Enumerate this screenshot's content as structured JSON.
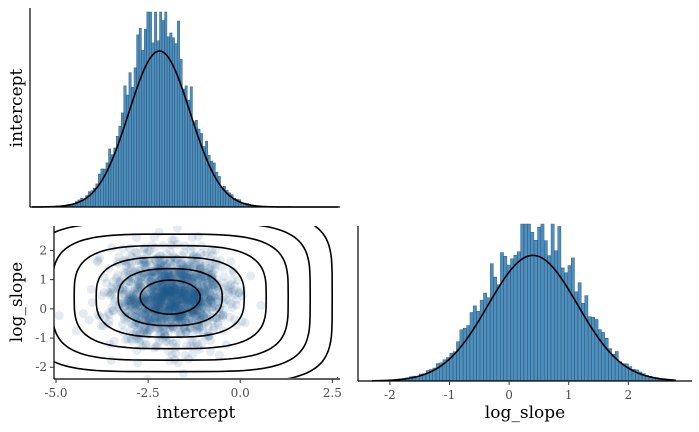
{
  "colors": {
    "bar_fill": "#4f8fbd",
    "bar_edge": "#1f4f74",
    "density_line": "#000000",
    "scatter_point": "#1f5a8c",
    "contour_line": "#000000"
  },
  "chart_data": [
    {
      "panel": "top-left",
      "type": "bar",
      "variable": "intercept",
      "ylabel": "intercept",
      "xlim": [
        -4.9,
        2.3
      ],
      "xticks_shown": false,
      "yticks_shown": false,
      "histogram": {
        "bins": 120,
        "center": -1.9,
        "sd": 0.72,
        "peak_rel": 1.0
      },
      "density_curve": {
        "type": "normal",
        "mean": -1.9,
        "sd": 0.72
      }
    },
    {
      "panel": "bottom-left",
      "type": "scatter",
      "x_variable": "intercept",
      "y_variable": "log_slope",
      "xlabel": "intercept",
      "ylabel": "log_slope",
      "xlim": [
        -5.0,
        2.6
      ],
      "ylim": [
        -2.3,
        2.7
      ],
      "xticks": [
        -5.0,
        -2.5,
        0.0,
        2.5
      ],
      "xtick_labels": [
        "-5.0",
        "-2.5",
        "0.0",
        "2.5"
      ],
      "yticks": [
        -2,
        -1,
        0,
        1,
        2
      ],
      "ytick_labels": [
        "-2",
        "-1",
        "0",
        "1",
        "2"
      ],
      "scatter_cloud": {
        "center_x": -1.9,
        "center_y": 0.4,
        "sd_x": 0.75,
        "sd_y": 0.75
      },
      "contours": {
        "center_x": -1.9,
        "center_y": 0.4,
        "levels": 11
      }
    },
    {
      "panel": "bottom-right",
      "type": "bar",
      "variable": "log_slope",
      "xlabel": "log_slope",
      "xlim": [
        -2.3,
        2.8
      ],
      "xticks": [
        -2,
        -1,
        0,
        1,
        2
      ],
      "xtick_labels": [
        "-2",
        "-1",
        "0",
        "1",
        "2"
      ],
      "yticks_shown": false,
      "histogram": {
        "bins": 90,
        "center": 0.4,
        "sd": 0.75,
        "peak_rel": 1.0
      },
      "density_curve": {
        "type": "normal",
        "mean": 0.4,
        "sd": 0.75
      }
    }
  ]
}
